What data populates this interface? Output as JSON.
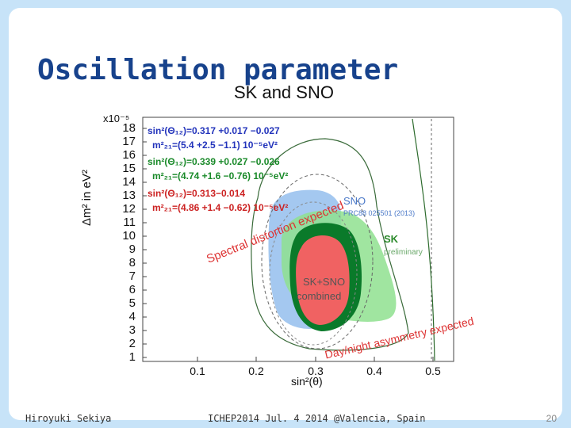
{
  "slide": {
    "title": "Oscillation parameter",
    "figure_title": "SK and SNO",
    "x_label": "sin²(θ)",
    "y_label": "Δm² in eV²",
    "y_scale": "x10⁻⁵",
    "y_ticks": [
      "18",
      "17",
      "16",
      "15",
      "14",
      "13",
      "12",
      "11",
      "10",
      "9",
      "8",
      "7",
      "6",
      "5",
      "4",
      "3",
      "2",
      "1"
    ],
    "x_ticks": [
      "0.1",
      "0.2",
      "0.3",
      "0.4",
      "0.5"
    ],
    "legend": [
      {
        "line1": "sin²(Θ₁₂)=0.317 +0.017 −0.027",
        "line2": "m²₂₁=(5.4 +2.5 −1.1) 10⁻⁵eV²",
        "color": "#2233bb"
      },
      {
        "line1": "sin²(Θ₁₂)=0.339 +0.027 −0.026",
        "line2": "m²₂₁=(4.74 +1.6 −0.76) 10⁻⁵eV²",
        "color": "#1a8a2a"
      },
      {
        "line1": "sin²(Θ₁₂)=0.313−0.014",
        "line2": "m²₂₁=(4.86 +1.4 −0.62) 10⁻⁵eV²",
        "color": "#cc2222"
      }
    ],
    "annotations": {
      "sno": "SNO",
      "sno_ref": "PRC88 025501 (2013)",
      "sk": "SK",
      "sk_sub": "preliminary",
      "combined1": "SK+SNO",
      "combined2": "combined",
      "spectral": "Spectral distortion expected",
      "daynight": "Day/night asymmetry expected"
    },
    "colors": {
      "accent_title": "#17428c",
      "background": "#c7e3f8",
      "sno": "#9ac2ee",
      "sk": "#8fe08f",
      "sk_dark": "#0a7a2a",
      "combined": "#f06262",
      "annotation": "#dd3333"
    }
  },
  "footer": {
    "author": "Hiroyuki Sekiya",
    "event": "ICHEP2014 Jul. 4 2014 @Valencia, Spain",
    "page": "20"
  }
}
